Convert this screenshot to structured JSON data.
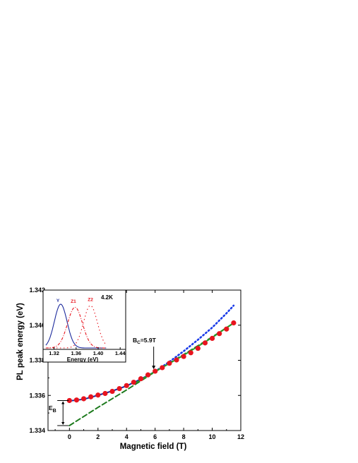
{
  "chart_data": [
    {
      "type": "scatter",
      "xlabel": "Magnetic field (T)",
      "ylabel": "PL peak energy (eV)",
      "xlim": [
        -1.5,
        12
      ],
      "ylim": [
        1.334,
        1.342
      ],
      "xticks": [
        0,
        2,
        4,
        6,
        8,
        10,
        12
      ],
      "yticks": [
        1.334,
        1.336,
        1.338,
        1.34,
        1.342
      ],
      "xtick_labels": [
        "0",
        "2",
        "4",
        "6",
        "8",
        "10",
        "12"
      ],
      "ytick_labels": [
        "1.334",
        "1.336",
        "1.338",
        "1.340",
        "1.342"
      ],
      "grid": false,
      "series": [
        {
          "kind": "points",
          "color": "#e8141e",
          "x": [
            0,
            0.5,
            1.0,
            1.5,
            2.0,
            2.5,
            3.0,
            3.5,
            4.0,
            4.5,
            5.0,
            5.5,
            6.0,
            6.5,
            7.0,
            7.5,
            8.0,
            8.5,
            9.0,
            9.5,
            10.0,
            10.5,
            11.0,
            11.5
          ],
          "y": [
            1.33571,
            1.33574,
            1.33581,
            1.33592,
            1.33602,
            1.33611,
            1.33623,
            1.33639,
            1.33656,
            1.33675,
            1.33695,
            1.33717,
            1.33738,
            1.33758,
            1.33783,
            1.33802,
            1.33822,
            1.33843,
            1.33868,
            1.33899,
            1.33925,
            1.33952,
            1.33978,
            1.34013
          ]
        },
        {
          "kind": "line",
          "style": "solid",
          "color": "#1c2a9c",
          "x": [
            -0.1,
            1,
            2,
            3,
            4,
            5,
            6
          ],
          "y": [
            1.33568,
            1.33578,
            1.33601,
            1.33625,
            1.33654,
            1.33693,
            1.33736
          ]
        },
        {
          "kind": "line",
          "style": "dotted",
          "color": "#1a3be8",
          "x": [
            6,
            7,
            8,
            9,
            10,
            11,
            11.5
          ],
          "y": [
            1.33736,
            1.33792,
            1.33852,
            1.33917,
            1.33987,
            1.34068,
            1.34112
          ]
        },
        {
          "kind": "line",
          "style": "dashed",
          "color": "#1d7a1d",
          "x": [
            0,
            2,
            4,
            6,
            8,
            10,
            11.5
          ],
          "y": [
            1.33428,
            1.33532,
            1.33631,
            1.33735,
            1.33833,
            1.33933,
            1.34012
          ]
        },
        {
          "kind": "line",
          "style": "solid",
          "color": "#2a9a2a",
          "x": [
            4.5,
            6,
            8,
            10,
            11.5
          ],
          "y": [
            1.33665,
            1.33736,
            1.33829,
            1.3393,
            1.34013
          ]
        }
      ],
      "annotations": {
        "bc_label": "B",
        "bc_sub": "C",
        "bc_rest": "=5.9T",
        "bc_x": 5.9,
        "eb_label": "E",
        "eb_sub": "B",
        "eb_top": 1.33571,
        "eb_bottom": 1.33428
      }
    },
    {
      "type": "line",
      "title": "4.2K",
      "xlabel": "Energy (eV)",
      "xlim": [
        1.3,
        1.45
      ],
      "xticks": [
        1.32,
        1.36,
        1.4,
        1.44
      ],
      "xtick_labels": [
        "1.32",
        "1.36",
        "1.40",
        "1.44"
      ],
      "series": [
        {
          "name": "Y",
          "style": "solid",
          "color": "#1c2a9c",
          "center": 1.332,
          "width": 0.0115,
          "amplitude": 1.0,
          "label_x": 1.327,
          "label_y": 1.05
        },
        {
          "name": "Z1",
          "style": "dashdot",
          "color": "#e8141e",
          "center": 1.358,
          "width": 0.0135,
          "amplitude": 0.93,
          "label_x": 1.355,
          "label_y": 1.03
        },
        {
          "name": "Z2",
          "style": "dotted",
          "color": "#e8141e",
          "center": 1.386,
          "width": 0.0125,
          "amplitude": 0.97,
          "label_x": 1.386,
          "label_y": 1.07
        }
      ]
    }
  ]
}
